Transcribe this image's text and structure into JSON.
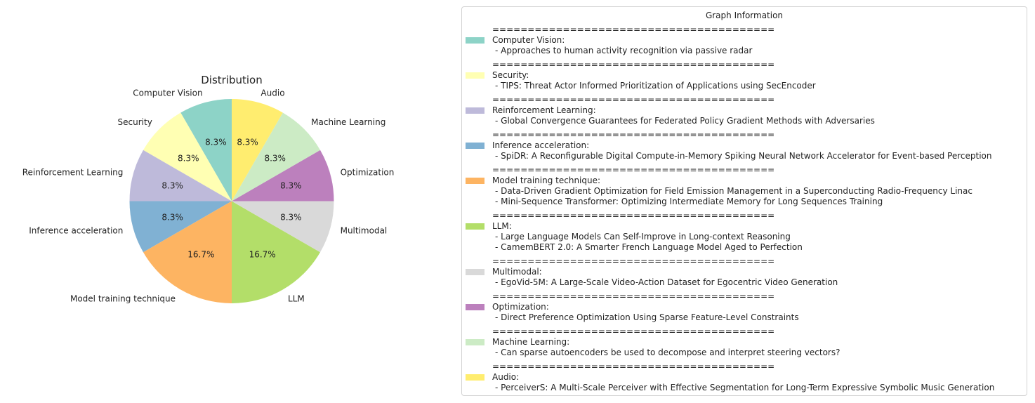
{
  "chart_data": {
    "type": "pie",
    "title": "Distribution",
    "slices": [
      {
        "label": "Computer Vision",
        "value": 1,
        "pct_label": "8.3%",
        "color": "#8dd3c7"
      },
      {
        "label": "Security",
        "value": 1,
        "pct_label": "8.3%",
        "color": "#ffffb3"
      },
      {
        "label": "Reinforcement Learning",
        "value": 1,
        "pct_label": "8.3%",
        "color": "#bebada"
      },
      {
        "label": "Inference acceleration",
        "value": 1,
        "pct_label": "8.3%",
        "color": "#80b1d3"
      },
      {
        "label": "Model training technique",
        "value": 2,
        "pct_label": "16.7%",
        "color": "#fdb462"
      },
      {
        "label": "LLM",
        "value": 2,
        "pct_label": "16.7%",
        "color": "#b3de69"
      },
      {
        "label": "Multimodal",
        "value": 1,
        "pct_label": "8.3%",
        "color": "#d9d9d9"
      },
      {
        "label": "Optimization",
        "value": 1,
        "pct_label": "8.3%",
        "color": "#bc80bd"
      },
      {
        "label": "Machine Learning",
        "value": 1,
        "pct_label": "8.3%",
        "color": "#ccebc5"
      },
      {
        "label": "Audio",
        "value": 1,
        "pct_label": "8.3%",
        "color": "#ffed6f"
      }
    ],
    "start_angle_deg": 90,
    "direction": "counterclockwise",
    "legend_placement": "right"
  },
  "legend": {
    "title": "Graph Information",
    "separator": "========================================",
    "entries": [
      {
        "category": "Computer Vision:",
        "color": "#8dd3c7",
        "papers": [
          "- Approaches to human activity recognition via passive radar"
        ]
      },
      {
        "category": "Security:",
        "color": "#ffffb3",
        "papers": [
          "- TIPS: Threat Actor Informed Prioritization of Applications using SecEncoder"
        ]
      },
      {
        "category": "Reinforcement Learning:",
        "color": "#bebada",
        "papers": [
          "- Global Convergence Guarantees for Federated Policy Gradient Methods with Adversaries"
        ]
      },
      {
        "category": "Inference acceleration:",
        "color": "#80b1d3",
        "papers": [
          "- SpiDR: A Reconfigurable Digital Compute-in-Memory Spiking Neural Network Accelerator for Event-based Perception"
        ]
      },
      {
        "category": "Model training technique:",
        "color": "#fdb462",
        "papers": [
          "- Data-Driven Gradient Optimization for Field Emission Management in a Superconducting Radio-Frequency Linac",
          "- Mini-Sequence Transformer: Optimizing Intermediate Memory for Long Sequences Training"
        ]
      },
      {
        "category": "LLM:",
        "color": "#b3de69",
        "papers": [
          "- Large Language Models Can Self-Improve in Long-context Reasoning",
          "- CamemBERT 2.0: A Smarter French Language Model Aged to Perfection"
        ]
      },
      {
        "category": "Multimodal:",
        "color": "#d9d9d9",
        "papers": [
          "- EgoVid-5M: A Large-Scale Video-Action Dataset for Egocentric Video Generation"
        ]
      },
      {
        "category": "Optimization:",
        "color": "#bc80bd",
        "papers": [
          "- Direct Preference Optimization Using Sparse Feature-Level Constraints"
        ]
      },
      {
        "category": "Machine Learning:",
        "color": "#ccebc5",
        "papers": [
          "- Can sparse autoencoders be used to decompose and interpret steering vectors?"
        ]
      },
      {
        "category": "Audio:",
        "color": "#ffed6f",
        "papers": [
          "- PerceiverS: A Multi-Scale Perceiver with Effective Segmentation for Long-Term Expressive Symbolic Music Generation"
        ]
      }
    ]
  }
}
